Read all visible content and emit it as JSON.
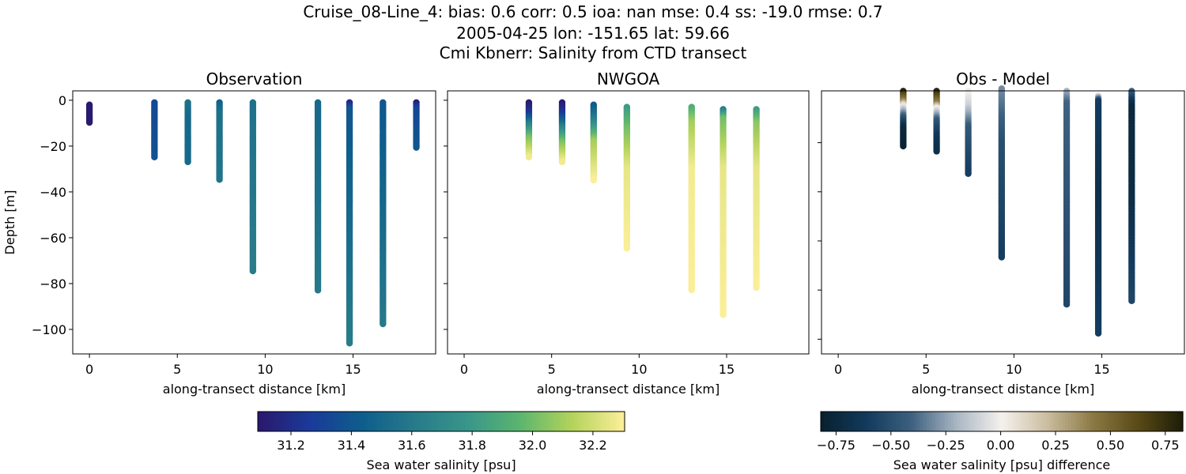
{
  "suptitle": [
    "Cruise_08-Line_4: bias: 0.6  corr: 0.5  ioa: nan  mse: 0.4  ss: -19.0  rmse: 0.7",
    "2005-04-25 lon: -151.65 lat: 59.66",
    "Cmi Kbnerr: Salinity from CTD transect"
  ],
  "chart_data": [
    {
      "type": "scatter",
      "title": "Observation",
      "xlabel": "along-transect distance [km]",
      "ylabel": "Depth [m]",
      "xlim": [
        -0.95,
        19.7
      ],
      "ylim": [
        -110.7,
        4.1
      ],
      "xticks": [
        "0",
        "5",
        "10",
        "15"
      ],
      "yticks": [
        "0",
        "−20",
        "−40",
        "−60",
        "−80",
        "−100"
      ],
      "show_ytick_labels": true,
      "colormap": "haline",
      "profiles": [
        {
          "x": 0.0,
          "depth": [
            -2,
            -10
          ],
          "values": [
            [
              -2,
              31.1
            ],
            [
              -10,
              31.1
            ]
          ]
        },
        {
          "x": 3.7,
          "depth": [
            -1,
            -25
          ],
          "values": [
            [
              -1,
              31.33
            ],
            [
              -25,
              31.38
            ]
          ]
        },
        {
          "x": 5.6,
          "depth": [
            -1,
            -27
          ],
          "values": [
            [
              -1,
              31.55
            ],
            [
              -8,
              31.5
            ],
            [
              -27,
              31.5
            ]
          ]
        },
        {
          "x": 7.4,
          "depth": [
            -1,
            -35
          ],
          "values": [
            [
              -1,
              31.45
            ],
            [
              -6,
              31.55
            ],
            [
              -35,
              31.57
            ]
          ]
        },
        {
          "x": 9.3,
          "depth": [
            -1,
            -75
          ],
          "values": [
            [
              -1,
              31.55
            ],
            [
              -75,
              31.62
            ]
          ]
        },
        {
          "x": 13.0,
          "depth": [
            -1,
            -83
          ],
          "values": [
            [
              -1,
              31.5
            ],
            [
              -83,
              31.6
            ]
          ]
        },
        {
          "x": 14.8,
          "depth": [
            -1,
            -106
          ],
          "values": [
            [
              -1,
              31.15
            ],
            [
              -4,
              31.4
            ],
            [
              -50,
              31.5
            ],
            [
              -106,
              31.62
            ]
          ]
        },
        {
          "x": 16.7,
          "depth": [
            -1,
            -98
          ],
          "values": [
            [
              -1,
              31.4
            ],
            [
              -40,
              31.48
            ],
            [
              -98,
              31.6
            ]
          ]
        },
        {
          "x": 18.6,
          "depth": [
            -1,
            -21
          ],
          "values": [
            [
              -1,
              31.12
            ],
            [
              -4,
              31.32
            ],
            [
              -21,
              31.4
            ]
          ]
        }
      ]
    },
    {
      "type": "scatter",
      "title": "NWGOA",
      "xlabel": "along-transect distance [km]",
      "xlim": [
        -0.95,
        19.7
      ],
      "ylim": [
        -110.7,
        4.1
      ],
      "xticks": [
        "0",
        "5",
        "10",
        "15"
      ],
      "yticks": [
        "0",
        "-20",
        "-40",
        "-60",
        "-80",
        "-100"
      ],
      "show_ytick_labels": false,
      "colormap": "haline",
      "profiles": [
        {
          "x": 3.7,
          "depth": [
            -1,
            -25
          ],
          "values": [
            [
              -1,
              31.1
            ],
            [
              -6,
              31.25
            ],
            [
              -10,
              31.6
            ],
            [
              -16,
              32.0
            ],
            [
              -25,
              32.28
            ]
          ]
        },
        {
          "x": 5.6,
          "depth": [
            -1,
            -27
          ],
          "values": [
            [
              -1,
              31.1
            ],
            [
              -6,
              31.25
            ],
            [
              -12,
              31.65
            ],
            [
              -18,
              32.0
            ],
            [
              -27,
              32.28
            ]
          ]
        },
        {
          "x": 7.4,
          "depth": [
            -2,
            -35
          ],
          "values": [
            [
              -2,
              31.4
            ],
            [
              -8,
              31.6
            ],
            [
              -18,
              32.1
            ],
            [
              -35,
              32.3
            ]
          ]
        },
        {
          "x": 9.3,
          "depth": [
            -3,
            -65
          ],
          "values": [
            [
              -3,
              31.8
            ],
            [
              -12,
              32.0
            ],
            [
              -30,
              32.25
            ],
            [
              -65,
              32.3
            ]
          ]
        },
        {
          "x": 13.0,
          "depth": [
            -3,
            -83
          ],
          "values": [
            [
              -3,
              31.9
            ],
            [
              -10,
              32.1
            ],
            [
              -30,
              32.28
            ],
            [
              -83,
              32.3
            ]
          ]
        },
        {
          "x": 14.8,
          "depth": [
            -4,
            -94
          ],
          "values": [
            [
              -4,
              31.6
            ],
            [
              -8,
              32.0
            ],
            [
              -30,
              32.25
            ],
            [
              -94,
              32.3
            ]
          ]
        },
        {
          "x": 16.7,
          "depth": [
            -4,
            -82
          ],
          "values": [
            [
              -4,
              31.8
            ],
            [
              -10,
              32.05
            ],
            [
              -30,
              32.25
            ],
            [
              -82,
              32.3
            ]
          ]
        }
      ]
    },
    {
      "type": "scatter",
      "title": "Obs - Model",
      "xlabel": "along-transect distance [km]",
      "xlim": [
        -0.95,
        19.7
      ],
      "ylim": [
        -106,
        1.1
      ],
      "xticks": [
        "0",
        "5",
        "10",
        "15"
      ],
      "yticks": [
        "-20",
        "-40",
        "-60",
        "-80",
        "-100"
      ],
      "show_ytick_labels": false,
      "colormap": "diff",
      "profiles": [
        {
          "x": 3.7,
          "depth": [
            1,
            -22
          ],
          "values": [
            [
              1,
              0.8
            ],
            [
              -3,
              0.4
            ],
            [
              -5,
              0.0
            ],
            [
              -9,
              -0.4
            ],
            [
              -14,
              -0.75
            ],
            [
              -22,
              -0.8
            ]
          ]
        },
        {
          "x": 5.6,
          "depth": [
            1,
            -24
          ],
          "values": [
            [
              1,
              0.8
            ],
            [
              -4,
              0.4
            ],
            [
              -6,
              0.0
            ],
            [
              -11,
              -0.45
            ],
            [
              -18,
              -0.65
            ],
            [
              -24,
              -0.7
            ]
          ]
        },
        {
          "x": 7.4,
          "depth": [
            1,
            -33
          ],
          "values": [
            [
              1,
              0.02
            ],
            [
              -5,
              -0.1
            ],
            [
              -14,
              -0.45
            ],
            [
              -33,
              -0.6
            ]
          ]
        },
        {
          "x": 9.3,
          "depth": [
            2,
            -67
          ],
          "values": [
            [
              2,
              -0.3
            ],
            [
              -20,
              -0.5
            ],
            [
              -67,
              -0.6
            ]
          ]
        },
        {
          "x": 13.0,
          "depth": [
            1,
            -86
          ],
          "values": [
            [
              1,
              -0.2
            ],
            [
              -4,
              -0.4
            ],
            [
              -86,
              -0.55
            ]
          ]
        },
        {
          "x": 14.8,
          "depth": [
            -1,
            -98
          ],
          "values": [
            [
              -1,
              -0.1
            ],
            [
              -3,
              -0.6
            ],
            [
              -40,
              -0.7
            ],
            [
              -98,
              -0.6
            ]
          ]
        },
        {
          "x": 16.7,
          "depth": [
            1,
            -85
          ],
          "values": [
            [
              1,
              -0.4
            ],
            [
              -5,
              -0.75
            ],
            [
              -40,
              -0.72
            ],
            [
              -85,
              -0.55
            ]
          ]
        }
      ]
    }
  ],
  "colorbars": [
    {
      "label": "Sea water salinity [psu]",
      "colormap": "haline",
      "range": [
        31.09,
        32.305
      ],
      "ticks": [
        "31.2",
        "31.4",
        "31.6",
        "31.8",
        "32.0",
        "32.2"
      ]
    },
    {
      "label": "Sea water salinity [psu] difference",
      "colormap": "diff",
      "range": [
        -0.82,
        0.83
      ],
      "ticks": [
        "−0.75",
        "−0.50",
        "−0.25",
        "0.00",
        "0.25",
        "0.50",
        "0.75"
      ]
    }
  ]
}
